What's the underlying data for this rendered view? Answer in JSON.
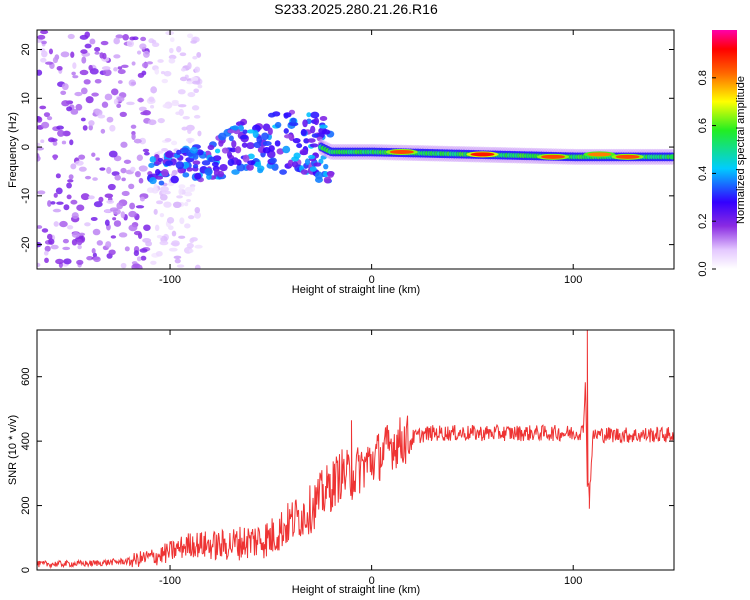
{
  "figure_title": "S233.2025.280.21.26.R16",
  "chart_data": [
    {
      "type": "heatmap",
      "title": "S233.2025.280.21.26.R16",
      "xlabel": "Height of straight line (km)",
      "ylabel": "Frequency (Hz)",
      "xlim": [
        -166,
        150
      ],
      "ylim": [
        -25,
        24
      ],
      "xticks": [
        -100,
        0,
        100
      ],
      "xtick_labels": [
        "-100",
        "0",
        "100"
      ],
      "yticks": [
        20,
        10,
        0,
        -10,
        -20
      ],
      "ytick_labels": [
        "20",
        "10",
        "0",
        "-10",
        "-20"
      ],
      "colorbar": {
        "label": "Normalized spectral amplitude",
        "range": [
          0,
          1
        ],
        "ticks": [
          0.0,
          0.2,
          0.4,
          0.6,
          0.8
        ],
        "tick_labels": [
          "0.0",
          "0.2",
          "0.4",
          "0.6",
          "0.8"
        ],
        "colormap": "rainbow (white to violet, blue, cyan, green, yellow, red, magenta)"
      },
      "description_points": {
        "ridge_frequency_hz": [
          {
            "x": -95,
            "y": -4
          },
          {
            "x": -80,
            "y": -3
          },
          {
            "x": -65,
            "y": 0
          },
          {
            "x": -50,
            "y": 1
          },
          {
            "x": -30,
            "y": 1
          },
          {
            "x": -20,
            "y": -1
          },
          {
            "x": 0,
            "y": -1
          },
          {
            "x": 50,
            "y": -1.5
          },
          {
            "x": 100,
            "y": -2
          },
          {
            "x": 150,
            "y": -2
          }
        ],
        "noise_region_x": [
          -166,
          -110
        ],
        "hotspots": [
          {
            "x": 15,
            "y": -1,
            "amp": 0.85
          },
          {
            "x": 55,
            "y": -1.5,
            "amp": 0.9
          },
          {
            "x": 90,
            "y": -2,
            "amp": 0.85
          },
          {
            "x": 113,
            "y": -1.5,
            "amp": 0.8
          },
          {
            "x": 127,
            "y": -2,
            "amp": 0.85
          }
        ]
      }
    },
    {
      "type": "line",
      "xlabel": "Height of straight line (km)",
      "ylabel": "SNR (10 * v/v)",
      "xlim": [
        -166,
        150
      ],
      "ylim": [
        0,
        745
      ],
      "xticks": [
        -100,
        0,
        100
      ],
      "xtick_labels": [
        "-100",
        "0",
        "100"
      ],
      "yticks": [
        0,
        200,
        400,
        600
      ],
      "ytick_labels": [
        "0",
        "200",
        "400",
        "600"
      ],
      "color": "#ee3333",
      "series": [
        {
          "name": "SNR",
          "x": [
            -166,
            -140,
            -120,
            -105,
            -90,
            -75,
            -60,
            -50,
            -40,
            -30,
            -25,
            -20,
            -15,
            -10,
            -5,
            0,
            5,
            10,
            15,
            20,
            25,
            30,
            40,
            50,
            60,
            80,
            100,
            105,
            106,
            107,
            108,
            110,
            120,
            130,
            140,
            150
          ],
          "y": [
            18,
            20,
            28,
            45,
            80,
            75,
            90,
            100,
            150,
            190,
            230,
            260,
            300,
            290,
            320,
            340,
            360,
            390,
            400,
            410,
            420,
            425,
            425,
            425,
            425,
            425,
            425,
            430,
            600,
            280,
            240,
            420,
            420,
            418,
            420,
            420
          ]
        }
      ],
      "spikes": [
        {
          "x": -10,
          "y": 465
        },
        {
          "x": 107,
          "y": 745
        },
        {
          "x": 108,
          "y": 190
        }
      ]
    }
  ]
}
